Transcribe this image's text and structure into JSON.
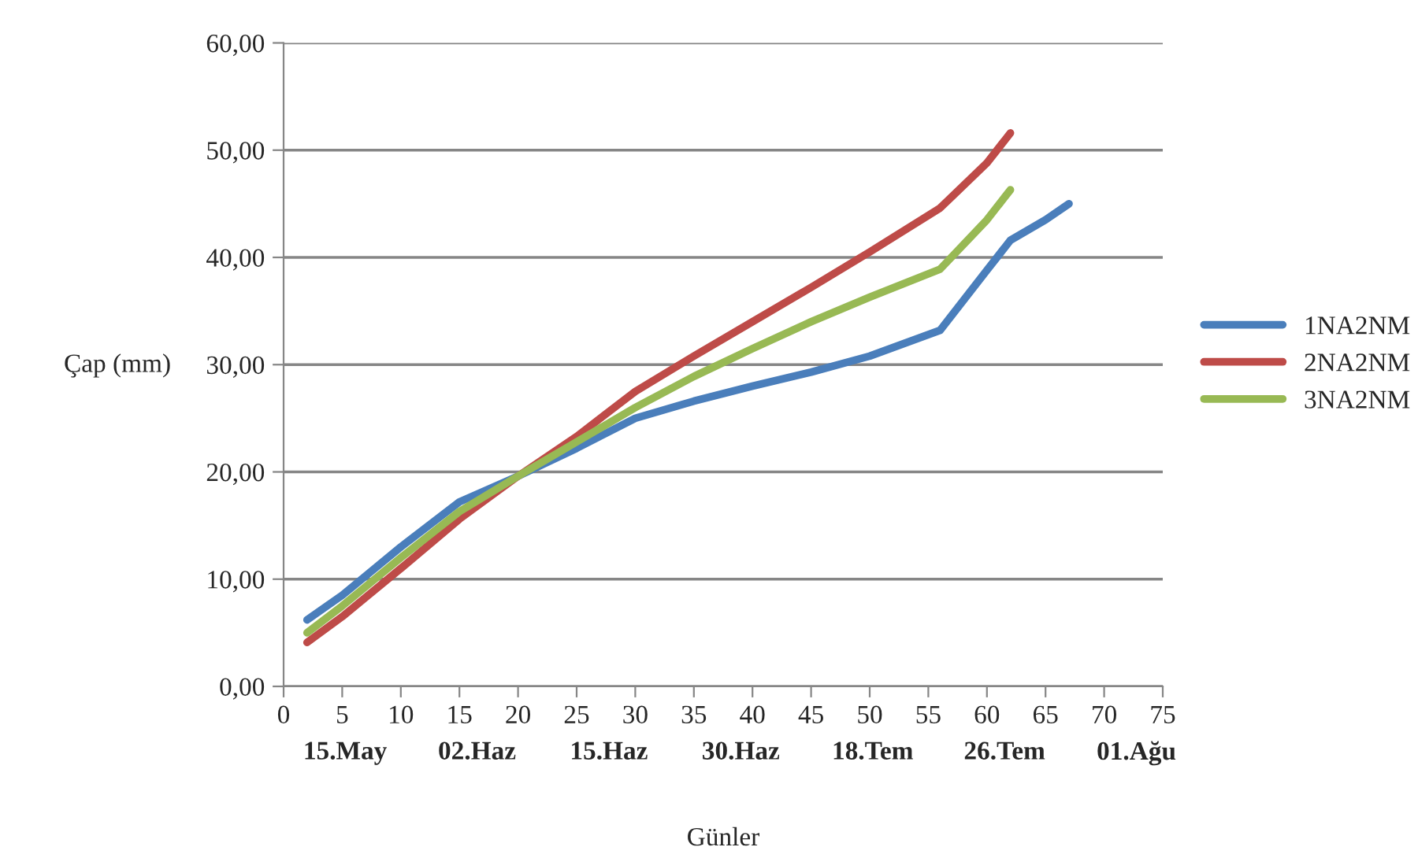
{
  "chart_data": {
    "type": "line",
    "xlabel": "Günler",
    "ylabel": "Çap (mm)",
    "xlim": [
      0,
      75
    ],
    "xticks": [
      0,
      5,
      10,
      15,
      20,
      25,
      30,
      35,
      40,
      45,
      50,
      55,
      60,
      65,
      70,
      75
    ],
    "ylim": [
      0,
      60
    ],
    "yticks": [
      {
        "value": 0,
        "label": "0,00"
      },
      {
        "value": 10,
        "label": "10,00"
      },
      {
        "value": 20,
        "label": "20,00"
      },
      {
        "value": 30,
        "label": "30,00"
      },
      {
        "value": 40,
        "label": "40,00"
      },
      {
        "value": 50,
        "label": "50,00"
      },
      {
        "value": 60,
        "label": "60,00"
      }
    ],
    "grid": "y",
    "legend": "right",
    "marker": "none",
    "line_style": "solid",
    "series": [
      {
        "name": "1NA2NM",
        "color": "#4a7ebb",
        "x": [
          2,
          5,
          10,
          15,
          20,
          25,
          30,
          35,
          40,
          45,
          50,
          56,
          60,
          62,
          65,
          67
        ],
        "values": [
          6.2,
          8.5,
          13,
          17.2,
          19.6,
          22.2,
          25,
          26.6,
          28,
          29.3,
          30.8,
          33.2,
          38.8,
          41.6,
          43.5,
          45
        ]
      },
      {
        "name": "2NA2NM",
        "color": "#be4b48",
        "x": [
          2,
          5,
          10,
          15,
          20,
          25,
          30,
          35,
          40,
          45,
          50,
          56,
          60,
          62
        ],
        "values": [
          4.1,
          6.5,
          11,
          15.6,
          19.6,
          23.3,
          27.5,
          30.8,
          34,
          37.2,
          40.5,
          44.6,
          48.8,
          51.6
        ]
      },
      {
        "name": "3NA2NM",
        "color": "#98b954",
        "x": [
          2,
          5,
          10,
          15,
          20,
          25,
          30,
          35,
          40,
          45,
          50,
          56,
          60,
          62
        ],
        "values": [
          5,
          7.5,
          12,
          16.3,
          19.6,
          22.8,
          26,
          28.9,
          31.5,
          34,
          36.3,
          38.9,
          43.5,
          46.3
        ]
      }
    ],
    "annotations": [
      "15.May",
      "02.Haz",
      "15.Haz",
      "30.Haz",
      "18.Tem",
      "26.Tem",
      "01.Ağu"
    ]
  }
}
